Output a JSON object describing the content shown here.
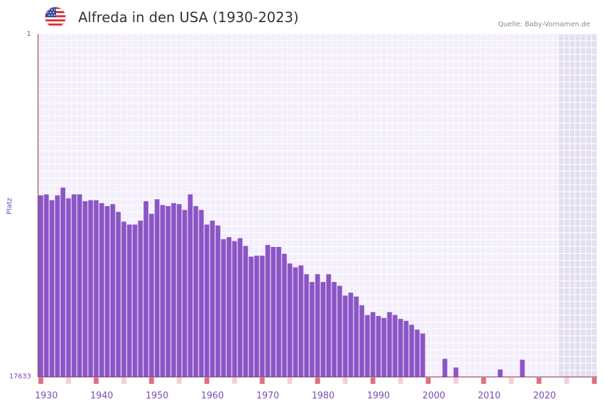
{
  "header": {
    "title": "Alfreda in den USA (1930-2023)",
    "source": "Quelle: Baby-Vornamen.de",
    "flag_icon": "usa-flag-icon"
  },
  "colors": {
    "bar": "#8b55c6",
    "background": "#f3eefb",
    "grid": "#ffffff",
    "future_shade": "#e4dff0",
    "axis": "#7a2a4a",
    "marker_strong": "#e06f7f",
    "marker_light": "#f6cfd6"
  },
  "chart_data": {
    "type": "bar",
    "title": "Alfreda in den USA (1930-2023)",
    "xlabel": "",
    "ylabel": "Platz",
    "y_axis_inverted": true,
    "ylim": [
      1,
      17633
    ],
    "y_tick_labels": [
      "1",
      "17633"
    ],
    "x_tick_labels": [
      "1930",
      "1940",
      "1950",
      "1960",
      "1970",
      "1980",
      "1990",
      "2000",
      "2010",
      "2020"
    ],
    "xlim": [
      1929,
      2029
    ],
    "shaded_future_from": 2023,
    "years": [
      1929,
      1930,
      1931,
      1932,
      1933,
      1934,
      1935,
      1936,
      1937,
      1938,
      1939,
      1940,
      1941,
      1942,
      1943,
      1944,
      1945,
      1946,
      1947,
      1948,
      1949,
      1950,
      1951,
      1952,
      1953,
      1954,
      1955,
      1956,
      1957,
      1958,
      1959,
      1960,
      1961,
      1962,
      1963,
      1964,
      1965,
      1966,
      1967,
      1968,
      1969,
      1970,
      1971,
      1972,
      1973,
      1974,
      1975,
      1976,
      1977,
      1978,
      1979,
      1980,
      1981,
      1982,
      1983,
      1984,
      1985,
      1986,
      1987,
      1988,
      1989,
      1990,
      1991,
      1992,
      1993,
      1994,
      1995,
      1996,
      1997,
      1998,
      2002,
      2004,
      2012,
      2016
    ],
    "ranks": [
      8300,
      8250,
      8550,
      8300,
      7900,
      8450,
      8250,
      8250,
      8600,
      8550,
      8550,
      8700,
      8850,
      8750,
      9150,
      9650,
      9800,
      9800,
      9600,
      8600,
      9250,
      8500,
      8800,
      8850,
      8700,
      8750,
      9050,
      8250,
      8850,
      9050,
      9800,
      9600,
      9850,
      10550,
      10450,
      10650,
      10500,
      10900,
      11450,
      11400,
      11400,
      10850,
      10950,
      10950,
      11300,
      11800,
      12000,
      11900,
      12350,
      12750,
      12350,
      12750,
      12350,
      12750,
      12950,
      13450,
      13300,
      13500,
      13950,
      14450,
      14300,
      14500,
      14600,
      14300,
      14450,
      14650,
      14750,
      14950,
      15200,
      15400,
      16700,
      17150,
      17250,
      16750
    ],
    "decade_markers_strong": [
      1929,
      1939,
      1949,
      1959,
      1969,
      1979,
      1989,
      1999,
      2009,
      2019,
      2029
    ],
    "decade_markers_light": [
      1934,
      1944,
      1954,
      1964,
      1974,
      1984,
      1994,
      2004,
      2014,
      2024
    ]
  }
}
